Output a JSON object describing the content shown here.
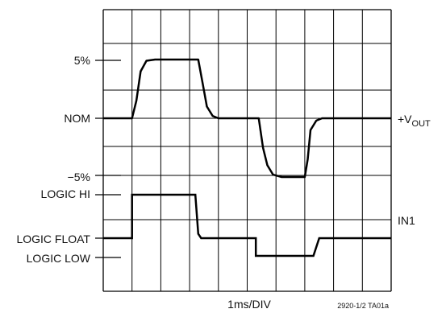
{
  "chart_data": {
    "type": "line",
    "xlabel": "1ms/DIV",
    "figure_id": "2920-1/2 TA01a",
    "x_divisions": 10,
    "grid": true,
    "y_labels": {
      "plus5": "5%",
      "nom": "NOM",
      "minus5": "−5%",
      "logic_hi": "LOGIC HI",
      "logic_float": "LOGIC FLOAT",
      "logic_low": "LOGIC LOW"
    },
    "series": [
      {
        "name": "+V",
        "name_sub": "OUT",
        "unit": "%",
        "x": [
          0,
          1.0,
          1.15,
          1.3,
          1.5,
          1.8,
          3.3,
          3.45,
          3.6,
          3.8,
          4.0,
          5.4,
          5.55,
          5.7,
          5.9,
          6.2,
          7.0,
          7.1,
          7.2,
          7.4,
          7.6,
          10
        ],
        "y": [
          0,
          0,
          1.5,
          4.0,
          4.9,
          5.0,
          5.0,
          3.0,
          1.0,
          0.2,
          0,
          0,
          -2.5,
          -4.0,
          -4.8,
          -5.0,
          -5.0,
          -3.5,
          -1.0,
          -0.2,
          0,
          0
        ]
      },
      {
        "name": "IN1",
        "states": [
          "LOGIC LOW",
          "LOGIC FLOAT",
          "LOGIC HI"
        ],
        "x": [
          0,
          1.0,
          1.0,
          3.2,
          3.3,
          3.4,
          5.3,
          5.3,
          7.3,
          7.5,
          10
        ],
        "y": [
          1,
          1,
          2,
          2,
          1.1,
          1,
          1,
          0,
          0,
          1,
          1
        ]
      }
    ]
  }
}
